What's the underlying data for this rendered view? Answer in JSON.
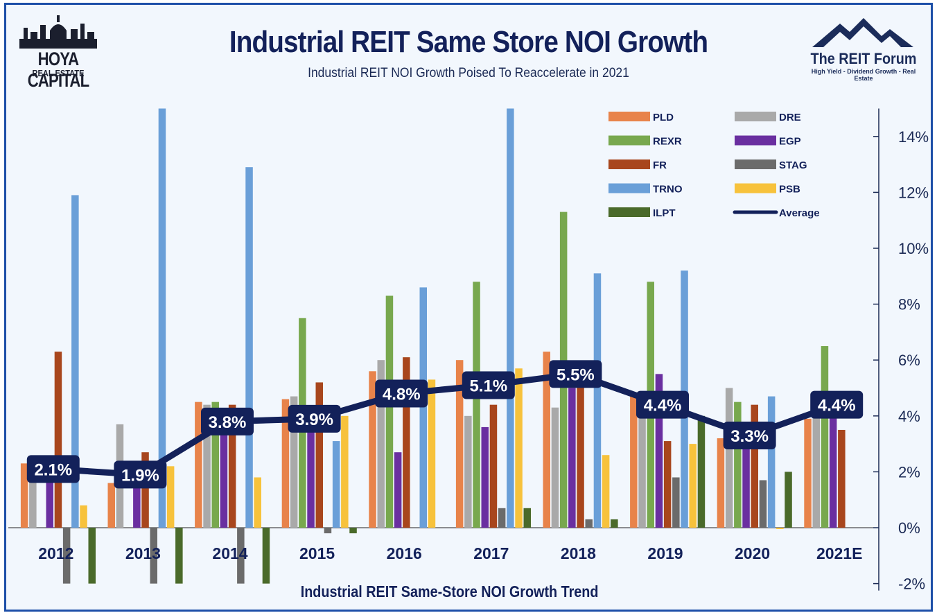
{
  "header": {
    "title": "Industrial REIT Same Store NOI Growth",
    "subtitle": "Industrial REIT NOI Growth Poised To Reaccelerate in 2021"
  },
  "logos": {
    "left_line1": "HOYA CAPITAL",
    "left_line2": "REAL ESTATE",
    "right_line1": "The REIT Forum",
    "right_line2": "High Yield - Dividend Growth - Real Estate"
  },
  "colors": {
    "background": "#f2f7fd",
    "border": "#1d4fa8",
    "average_line": "#13215a"
  },
  "chart_data": {
    "type": "bar",
    "xlabel": "Industrial REIT Same-Store NOI Growth Trend",
    "ylabel": "",
    "y_axis_position": "right",
    "ylim": [
      -2,
      15
    ],
    "yticks": [
      -2,
      0,
      2,
      4,
      6,
      8,
      10,
      12,
      14
    ],
    "ytick_labels": [
      "-2%",
      "0%",
      "2%",
      "4%",
      "6%",
      "8%",
      "10%",
      "12%",
      "14%"
    ],
    "legend_position": "top-right",
    "categories": [
      "2012",
      "2013",
      "2014",
      "2015",
      "2016",
      "2017",
      "2018",
      "2019",
      "2020",
      "2021E"
    ],
    "series": [
      {
        "name": "PLD",
        "color": "#e8834a",
        "values": [
          2.3,
          1.6,
          4.5,
          4.6,
          5.6,
          6.0,
          6.3,
          4.7,
          3.2,
          3.9
        ]
      },
      {
        "name": "DRE",
        "color": "#a9a9a9",
        "values": [
          2.5,
          3.7,
          4.4,
          4.7,
          6.0,
          4.0,
          4.3,
          4.5,
          5.0,
          4.2
        ]
      },
      {
        "name": "REXR",
        "color": "#78a84e",
        "values": [
          null,
          null,
          4.5,
          7.5,
          8.3,
          8.8,
          11.3,
          8.8,
          4.5,
          6.5
        ]
      },
      {
        "name": "EGP",
        "color": "#6a2fa0",
        "values": [
          2.2,
          2.0,
          3.5,
          3.5,
          2.7,
          3.6,
          5.0,
          5.5,
          3.0,
          4.2
        ]
      },
      {
        "name": "FR",
        "color": "#a8461d",
        "values": [
          6.3,
          2.7,
          4.4,
          5.2,
          6.1,
          4.4,
          5.5,
          3.1,
          4.4,
          3.5
        ]
      },
      {
        "name": "STAG",
        "color": "#6b6b6b",
        "values": [
          -2.0,
          -2.0,
          -2.0,
          -0.2,
          null,
          0.7,
          0.3,
          1.8,
          1.7,
          null
        ]
      },
      {
        "name": "TRNO",
        "color": "#6a9fd8",
        "values": [
          11.9,
          15.0,
          12.9,
          3.1,
          8.6,
          15.0,
          9.1,
          9.2,
          4.7,
          null
        ]
      },
      {
        "name": "PSB",
        "color": "#f7c23c",
        "values": [
          0.8,
          2.2,
          1.8,
          4.0,
          5.3,
          5.7,
          2.6,
          3.0,
          -0.05,
          null
        ]
      },
      {
        "name": "ILPT",
        "color": "#4a6a2a",
        "values": [
          -2.0,
          -2.0,
          -2.0,
          -0.2,
          null,
          0.7,
          0.3,
          4.0,
          2.0,
          null
        ]
      }
    ],
    "average": {
      "name": "Average",
      "color": "#13215a",
      "values": [
        2.1,
        1.9,
        3.8,
        3.9,
        4.8,
        5.1,
        5.5,
        4.4,
        3.3,
        4.4
      ],
      "labels": [
        "2.1%",
        "1.9%",
        "3.8%",
        "3.9%",
        "4.8%",
        "5.1%",
        "5.5%",
        "4.4%",
        "3.3%",
        "4.4%"
      ]
    },
    "legend_layout": [
      [
        "PLD",
        "DRE"
      ],
      [
        "REXR",
        "EGP"
      ],
      [
        "FR",
        "STAG"
      ],
      [
        "TRNO",
        "PSB"
      ],
      [
        "ILPT",
        "Average"
      ]
    ]
  }
}
